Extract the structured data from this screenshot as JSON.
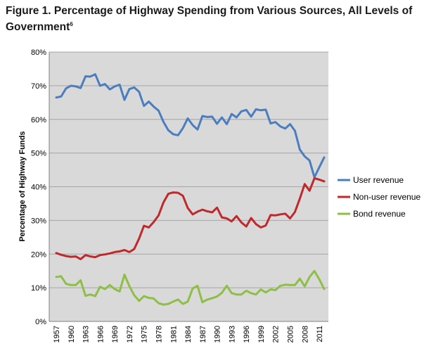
{
  "header": {
    "title": "Figure 1. Percentage of Highway Spending from Various Sources, All Levels of Government",
    "title_line1": "Figure 1. Percentage of Highway Spending from Various Sources, All Levels of",
    "title_line2": "Government",
    "footnote_mark": "6"
  },
  "chart_data": {
    "type": "line",
    "title": "",
    "xlabel": "",
    "ylabel": "Percentage of Highway Funds",
    "ylim": [
      0,
      80
    ],
    "yticks": [
      "0%",
      "10%",
      "20%",
      "30%",
      "40%",
      "50%",
      "60%",
      "70%",
      "80%"
    ],
    "xticks": [
      "1957",
      "1960",
      "1963",
      "1966",
      "1969",
      "1972",
      "1975",
      "1978",
      "1981",
      "1984",
      "1987",
      "1990",
      "1993",
      "1996",
      "1999",
      "2002",
      "2005",
      "2008",
      "2011"
    ],
    "grid": true,
    "legend_position": "right",
    "x": [
      1957,
      1958,
      1959,
      1960,
      1961,
      1962,
      1963,
      1964,
      1965,
      1966,
      1967,
      1968,
      1969,
      1970,
      1971,
      1972,
      1973,
      1974,
      1975,
      1976,
      1977,
      1978,
      1979,
      1980,
      1981,
      1982,
      1983,
      1984,
      1985,
      1986,
      1987,
      1988,
      1989,
      1990,
      1991,
      1992,
      1993,
      1994,
      1995,
      1996,
      1997,
      1998,
      1999,
      2000,
      2001,
      2002,
      2003,
      2004,
      2005,
      2006,
      2007,
      2008,
      2009,
      2010,
      2011,
      2012
    ],
    "series": [
      {
        "name": "User revenue",
        "color": "#4a7ebf",
        "values": [
          66.5,
          66.8,
          69.2,
          70,
          69.8,
          69.3,
          72.8,
          72.7,
          73.4,
          70,
          70.5,
          68.9,
          69.8,
          70.3,
          65.8,
          69,
          69.5,
          68.2,
          64,
          65.3,
          63.8,
          62.6,
          59.3,
          56.8,
          55.6,
          55.3,
          57.4,
          60.3,
          58.3,
          57,
          61,
          60.7,
          60.8,
          58.7,
          60.6,
          58.6,
          61.6,
          60.6,
          62.4,
          62.8,
          60.8,
          63,
          62.7,
          62.9,
          58.8,
          59.2,
          57.9,
          57.3,
          58.6,
          56.6,
          51,
          49,
          47.8,
          42.8,
          45.8,
          48.7
        ]
      },
      {
        "name": "Non-user revenue",
        "color": "#c0292c",
        "values": [
          20.3,
          19.8,
          19.4,
          19.2,
          19.3,
          18.5,
          19.7,
          19.3,
          19.1,
          19.7,
          19.9,
          20.2,
          20.6,
          20.8,
          21.2,
          20.6,
          21.5,
          24.6,
          28.4,
          27.9,
          29.5,
          31.5,
          35.3,
          37.9,
          38.3,
          38.2,
          37.3,
          33.7,
          31.8,
          32.6,
          33.2,
          32.7,
          32.4,
          33.8,
          30.9,
          30.6,
          29.7,
          31.3,
          29.4,
          28.2,
          30.7,
          28.9,
          27.9,
          28.5,
          31.6,
          31.5,
          31.8,
          32,
          30.6,
          32.5,
          36.5,
          40.8,
          38.8,
          42.5,
          42.1,
          41.6
        ]
      },
      {
        "name": "Bond revenue",
        "color": "#8ebf45",
        "values": [
          13.2,
          13.4,
          11.2,
          10.8,
          10.8,
          12.2,
          7.6,
          8,
          7.5,
          10.3,
          9.6,
          10.8,
          9.6,
          8.9,
          13.9,
          10.5,
          7.8,
          6.1,
          7.5,
          7,
          6.8,
          5.4,
          5,
          5.2,
          5.9,
          6.5,
          5.2,
          5.9,
          9.8,
          10.6,
          5.7,
          6.5,
          6.9,
          7.4,
          8.5,
          10.6,
          8.4,
          8,
          8,
          9.1,
          8.4,
          8,
          9.5,
          8.6,
          9.5,
          9.3,
          10.6,
          10.9,
          10.8,
          10.8,
          12.7,
          10.4,
          13.2,
          15,
          12.5,
          9.6
        ]
      }
    ]
  }
}
